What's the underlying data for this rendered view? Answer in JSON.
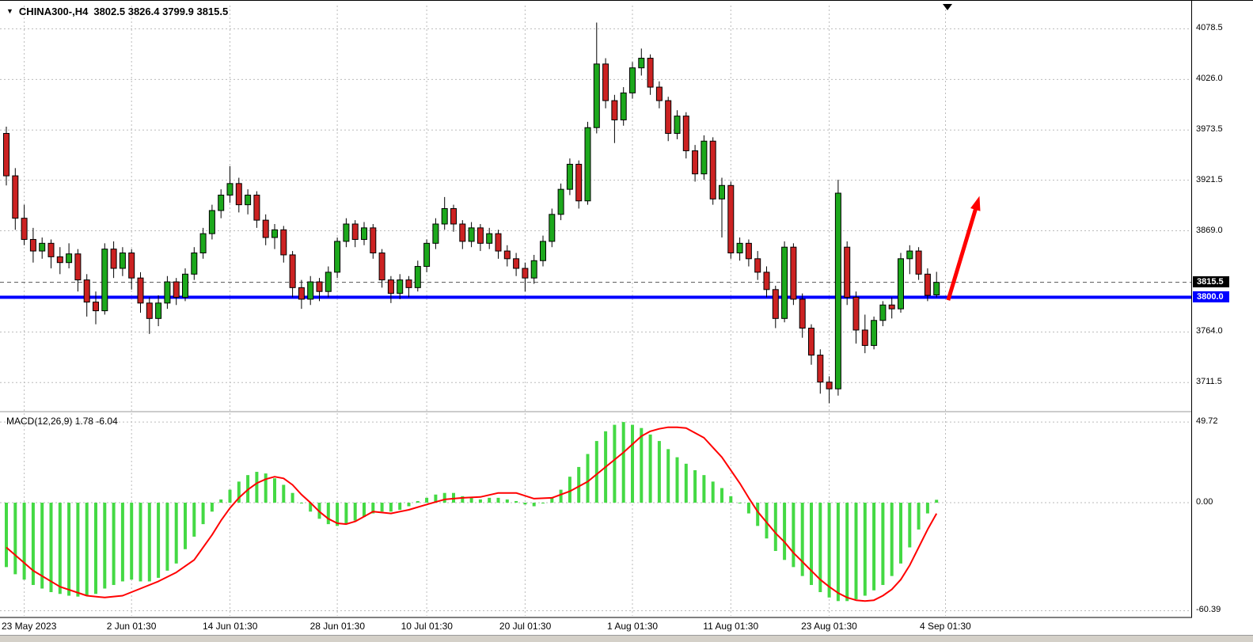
{
  "header": {
    "symbol_period": "CHINA300-,H4",
    "ohlc": "3802.5 3826.4 3799.9 3815.5"
  },
  "macd_label": "MACD(12,26,9) 1.78 -6.04",
  "chart_data": {
    "type": "candlestick",
    "title": "CHINA300-,H4",
    "symbol": "CHINA300-",
    "timeframe": "H4",
    "ohlc_current": {
      "open": 3802.5,
      "high": 3826.4,
      "low": 3799.9,
      "close": 3815.5
    },
    "colors": {
      "bull": "#1CA81C",
      "bear": "#CC2222",
      "wick": "#000000",
      "macd_bar": "#44D944",
      "signal": "#FF0000",
      "grid": "#BBBBBB",
      "hline": "#0000FF",
      "arrow": "#FF0000",
      "bid_tag_bg": "#000000",
      "hline_tag_bg": "#0000FF"
    },
    "price_panel": {
      "ylim": [
        3683,
        4101
      ],
      "grid_values": [
        4078.5,
        4026.0,
        3973.5,
        3921.5,
        3869.0,
        3764.0,
        3711.5
      ],
      "grid_labels": [
        "4078.5",
        "4026.0",
        "3973.5",
        "3921.5",
        "3869.0",
        "3764.0",
        "3711.5"
      ],
      "current_price": 3815.5,
      "current_price_label": "3815.5",
      "candles": [
        [
          3970,
          3977,
          3916,
          3926
        ],
        [
          3926,
          3934,
          3870,
          3882
        ],
        [
          3882,
          3896,
          3854,
          3860
        ],
        [
          3860,
          3872,
          3836,
          3848
        ],
        [
          3848,
          3862,
          3840,
          3856
        ],
        [
          3856,
          3860,
          3830,
          3842
        ],
        [
          3842,
          3852,
          3824,
          3836
        ],
        [
          3836,
          3856,
          3830,
          3845
        ],
        [
          3845,
          3850,
          3806,
          3818
        ],
        [
          3818,
          3824,
          3780,
          3795
        ],
        [
          3795,
          3806,
          3772,
          3786
        ],
        [
          3786,
          3856,
          3782,
          3850
        ],
        [
          3850,
          3858,
          3820,
          3830
        ],
        [
          3830,
          3852,
          3822,
          3846
        ],
        [
          3846,
          3850,
          3808,
          3820
        ],
        [
          3820,
          3826,
          3784,
          3794
        ],
        [
          3794,
          3800,
          3762,
          3778
        ],
        [
          3778,
          3802,
          3770,
          3794
        ],
        [
          3794,
          3822,
          3788,
          3816
        ],
        [
          3816,
          3820,
          3792,
          3800
        ],
        [
          3800,
          3830,
          3796,
          3824
        ],
        [
          3824,
          3852,
          3818,
          3846
        ],
        [
          3846,
          3872,
          3840,
          3866
        ],
        [
          3866,
          3896,
          3860,
          3890
        ],
        [
          3890,
          3912,
          3882,
          3906
        ],
        [
          3906,
          3936,
          3898,
          3918
        ],
        [
          3918,
          3924,
          3888,
          3896
        ],
        [
          3896,
          3912,
          3886,
          3906
        ],
        [
          3906,
          3910,
          3872,
          3880
        ],
        [
          3880,
          3886,
          3854,
          3862
        ],
        [
          3862,
          3876,
          3850,
          3870
        ],
        [
          3870,
          3874,
          3836,
          3844
        ],
        [
          3844,
          3848,
          3800,
          3810
        ],
        [
          3810,
          3818,
          3788,
          3798
        ],
        [
          3798,
          3822,
          3792,
          3816
        ],
        [
          3816,
          3820,
          3796,
          3806
        ],
        [
          3806,
          3832,
          3800,
          3826
        ],
        [
          3826,
          3862,
          3820,
          3858
        ],
        [
          3858,
          3882,
          3852,
          3876
        ],
        [
          3876,
          3880,
          3852,
          3860
        ],
        [
          3860,
          3878,
          3854,
          3872
        ],
        [
          3872,
          3876,
          3840,
          3846
        ],
        [
          3846,
          3850,
          3810,
          3818
        ],
        [
          3818,
          3822,
          3794,
          3804
        ],
        [
          3804,
          3824,
          3798,
          3818
        ],
        [
          3818,
          3822,
          3800,
          3810
        ],
        [
          3810,
          3838,
          3806,
          3832
        ],
        [
          3832,
          3860,
          3826,
          3856
        ],
        [
          3856,
          3882,
          3850,
          3876
        ],
        [
          3876,
          3904,
          3870,
          3892
        ],
        [
          3892,
          3896,
          3868,
          3876
        ],
        [
          3876,
          3880,
          3850,
          3858
        ],
        [
          3858,
          3878,
          3852,
          3872
        ],
        [
          3872,
          3876,
          3848,
          3856
        ],
        [
          3856,
          3872,
          3850,
          3866
        ],
        [
          3866,
          3870,
          3840,
          3848
        ],
        [
          3848,
          3854,
          3832,
          3840
        ],
        [
          3840,
          3846,
          3822,
          3830
        ],
        [
          3830,
          3836,
          3806,
          3820
        ],
        [
          3820,
          3844,
          3814,
          3838
        ],
        [
          3838,
          3864,
          3832,
          3858
        ],
        [
          3858,
          3892,
          3852,
          3886
        ],
        [
          3886,
          3918,
          3880,
          3912
        ],
        [
          3912,
          3944,
          3906,
          3938
        ],
        [
          3938,
          3942,
          3892,
          3900
        ],
        [
          3900,
          3982,
          3896,
          3976
        ],
        [
          3976,
          4085,
          3970,
          4042
        ],
        [
          4042,
          4048,
          3996,
          4004
        ],
        [
          4004,
          4010,
          3960,
          3984
        ],
        [
          3984,
          4018,
          3978,
          4012
        ],
        [
          4012,
          4044,
          4006,
          4038
        ],
        [
          4038,
          4058,
          4030,
          4048
        ],
        [
          4048,
          4052,
          4010,
          4018
        ],
        [
          4018,
          4024,
          3996,
          4004
        ],
        [
          4004,
          4008,
          3962,
          3970
        ],
        [
          3970,
          3994,
          3964,
          3988
        ],
        [
          3988,
          3992,
          3944,
          3952
        ],
        [
          3952,
          3958,
          3920,
          3928
        ],
        [
          3928,
          3968,
          3922,
          3962
        ],
        [
          3962,
          3966,
          3896,
          3902
        ],
        [
          3902,
          3924,
          3862,
          3916
        ],
        [
          3916,
          3920,
          3840,
          3846
        ],
        [
          3846,
          3862,
          3838,
          3856
        ],
        [
          3856,
          3860,
          3832,
          3840
        ],
        [
          3840,
          3848,
          3818,
          3826
        ],
        [
          3826,
          3832,
          3800,
          3808
        ],
        [
          3808,
          3812,
          3768,
          3778
        ],
        [
          3778,
          3858,
          3774,
          3852
        ],
        [
          3852,
          3856,
          3792,
          3798
        ],
        [
          3798,
          3804,
          3758,
          3768
        ],
        [
          3768,
          3772,
          3730,
          3740
        ],
        [
          3740,
          3746,
          3700,
          3712
        ],
        [
          3712,
          3718,
          3690,
          3705
        ],
        [
          3705,
          3922,
          3698,
          3908
        ],
        [
          3852,
          3858,
          3792,
          3800
        ],
        [
          3800,
          3806,
          3752,
          3766
        ],
        [
          3766,
          3782,
          3742,
          3750
        ],
        [
          3750,
          3780,
          3746,
          3776
        ],
        [
          3776,
          3796,
          3770,
          3792
        ],
        [
          3792,
          3800,
          3778,
          3788
        ],
        [
          3788,
          3846,
          3784,
          3840
        ],
        [
          3840,
          3854,
          3824,
          3848
        ],
        [
          3848,
          3852,
          3818,
          3824
        ],
        [
          3824,
          3830,
          3796,
          3802
        ],
        [
          3802.5,
          3826.4,
          3799.9,
          3815.5
        ]
      ]
    },
    "hline": {
      "price": 3800.0,
      "label": "3800.0"
    },
    "macd_panel": {
      "params": "12,26,9",
      "macd_value": 1.78,
      "signal_value": -6.04,
      "ylim": [
        -62,
        53.7
      ],
      "grid_values": [
        49.72,
        0,
        -60.39
      ],
      "grid_labels": [
        "49.72",
        "0.00",
        "-60.39"
      ],
      "macd": [
        -36,
        -40,
        -43,
        -46,
        -48,
        -50,
        -51,
        -52,
        -52.5,
        -52,
        -51,
        -48,
        -46,
        -44,
        -43,
        -44,
        -44,
        -42,
        -38,
        -34,
        -26,
        -19,
        -12,
        -5,
        2,
        8,
        13,
        17,
        19,
        18,
        15,
        11,
        6,
        0,
        -5,
        -9,
        -12,
        -13,
        -12,
        -10,
        -8,
        -6,
        -5,
        -5,
        -4,
        -2,
        1,
        3,
        5,
        6,
        6,
        4,
        3,
        2,
        3,
        3,
        2,
        1,
        -1,
        -2,
        0,
        3,
        8,
        16,
        22,
        30,
        38,
        44,
        48,
        49.7,
        48,
        46,
        42,
        38,
        33,
        28,
        24,
        20,
        17,
        13,
        9,
        4,
        0,
        -6,
        -13,
        -20,
        -27,
        -32,
        -36,
        -41,
        -46,
        -50,
        -53,
        -55,
        -55,
        -54,
        -52,
        -49,
        -46,
        -41,
        -34,
        -25,
        -15,
        -6,
        1.78
      ],
      "signal_points": [
        [
          0,
          -25
        ],
        [
          3,
          -38
        ],
        [
          6,
          -47
        ],
        [
          9,
          -52
        ],
        [
          11,
          -53
        ],
        [
          13,
          -52
        ],
        [
          15,
          -48
        ],
        [
          17,
          -44
        ],
        [
          19,
          -39
        ],
        [
          21,
          -32
        ],
        [
          23,
          -18
        ],
        [
          24,
          -10
        ],
        [
          25,
          -3
        ],
        [
          26,
          3
        ],
        [
          27,
          8
        ],
        [
          28,
          12
        ],
        [
          29,
          14.5
        ],
        [
          30,
          16
        ],
        [
          31,
          15
        ],
        [
          32,
          11
        ],
        [
          33,
          5
        ],
        [
          34,
          0
        ],
        [
          35,
          -5
        ],
        [
          36,
          -9
        ],
        [
          37,
          -11.5
        ],
        [
          38,
          -12
        ],
        [
          39,
          -10.5
        ],
        [
          41,
          -5
        ],
        [
          43,
          -6
        ],
        [
          45,
          -4
        ],
        [
          47,
          -1
        ],
        [
          49,
          2
        ],
        [
          51,
          3
        ],
        [
          53,
          3.5
        ],
        [
          55,
          6
        ],
        [
          57,
          6
        ],
        [
          59,
          2.5
        ],
        [
          61,
          3
        ],
        [
          63,
          7
        ],
        [
          65,
          13
        ],
        [
          67,
          22
        ],
        [
          69,
          31
        ],
        [
          71,
          41
        ],
        [
          72,
          44
        ],
        [
          73,
          45.5
        ],
        [
          74,
          46.5
        ],
        [
          75,
          46.5
        ],
        [
          76,
          46
        ],
        [
          77,
          43
        ],
        [
          78,
          40
        ],
        [
          79,
          34
        ],
        [
          80,
          28
        ],
        [
          81,
          20
        ],
        [
          82,
          12
        ],
        [
          83,
          3
        ],
        [
          84,
          -5
        ],
        [
          85,
          -11
        ],
        [
          86,
          -17
        ],
        [
          87,
          -22
        ],
        [
          88,
          -28
        ],
        [
          89,
          -33
        ],
        [
          90,
          -38
        ],
        [
          91,
          -43
        ],
        [
          92,
          -47
        ],
        [
          93,
          -50.5
        ],
        [
          94,
          -53
        ],
        [
          95,
          -54.5
        ],
        [
          96,
          -55
        ],
        [
          97,
          -54.5
        ],
        [
          98,
          -52
        ],
        [
          99,
          -48.5
        ],
        [
          100,
          -43
        ],
        [
          101,
          -35
        ],
        [
          102,
          -25
        ],
        [
          103,
          -15
        ],
        [
          104,
          -6.04
        ]
      ]
    },
    "time_axis": {
      "labels": [
        "23 May 2023",
        "2 Jun 01:30",
        "14 Jun 01:30",
        "28 Jun 01:30",
        "10 Jul 01:30",
        "20 Jul 01:30",
        "1 Aug 01:30",
        "11 Aug 01:30",
        "23 Aug 01:30",
        "4 Sep 01:30"
      ],
      "indices": [
        2,
        14,
        25,
        37,
        47,
        58,
        70,
        81,
        92,
        105
      ]
    },
    "annotations": {
      "arrow": {
        "from": {
          "index": 105.3,
          "price": 3797
        },
        "to": {
          "index": 108.8,
          "price": 3905
        },
        "color": "#FF0000"
      }
    }
  }
}
